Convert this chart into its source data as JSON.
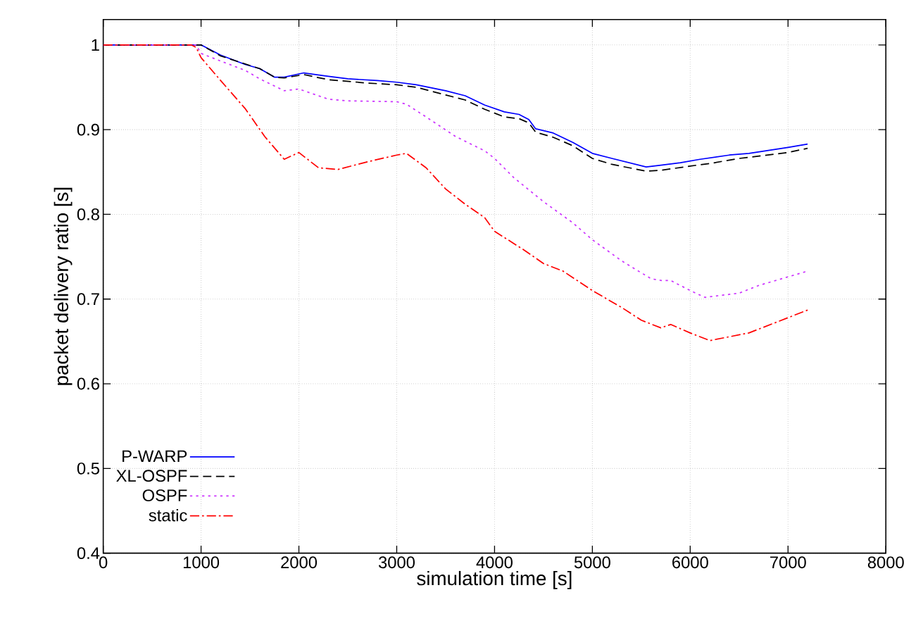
{
  "chart_data": {
    "type": "line",
    "xlabel": "simulation time [s]",
    "ylabel": "packet delivery ratio [s]",
    "xlim": [
      0,
      8000
    ],
    "ylim": [
      0.4,
      1.03
    ],
    "xticks": [
      0,
      1000,
      2000,
      3000,
      4000,
      5000,
      6000,
      7000,
      8000
    ],
    "yticks": [
      0.4,
      0.5,
      0.6,
      0.7,
      0.8,
      0.9,
      1
    ],
    "grid": true,
    "legend": "bottom left",
    "marker": "none",
    "series": [
      {
        "name": "P-WARP",
        "color": "#0000ff",
        "line_style": "solid",
        "x": [
          0,
          950,
          1000,
          1200,
          1450,
          1600,
          1750,
          1850,
          2050,
          2300,
          2500,
          2800,
          3000,
          3200,
          3500,
          3700,
          3900,
          4100,
          4250,
          4350,
          4420,
          4600,
          4800,
          5000,
          5200,
          5550,
          5700,
          5900,
          6100,
          6400,
          6600,
          7000,
          7200
        ],
        "values": [
          1.0,
          1.0,
          1.0,
          0.988,
          0.977,
          0.972,
          0.962,
          0.962,
          0.967,
          0.963,
          0.96,
          0.958,
          0.956,
          0.953,
          0.946,
          0.94,
          0.929,
          0.921,
          0.918,
          0.912,
          0.901,
          0.896,
          0.885,
          0.872,
          0.866,
          0.856,
          0.858,
          0.861,
          0.865,
          0.87,
          0.872,
          0.879,
          0.883
        ]
      },
      {
        "name": "XL-OSPF",
        "color": "#000000",
        "line_style": "dashed",
        "x": [
          0,
          1000,
          1200,
          1600,
          1750,
          1850,
          2050,
          2300,
          2700,
          3000,
          3200,
          3500,
          3700,
          3900,
          4100,
          4250,
          4350,
          4420,
          4600,
          4800,
          5000,
          5200,
          5550,
          5700,
          6000,
          6200,
          6500,
          7000,
          7200
        ],
        "values": [
          1.0,
          1.0,
          0.987,
          0.972,
          0.962,
          0.961,
          0.965,
          0.959,
          0.955,
          0.953,
          0.95,
          0.941,
          0.935,
          0.924,
          0.915,
          0.913,
          0.908,
          0.897,
          0.891,
          0.881,
          0.866,
          0.859,
          0.851,
          0.852,
          0.857,
          0.86,
          0.866,
          0.873,
          0.878
        ]
      },
      {
        "name": "OSPF",
        "color": "#cc33ff",
        "line_style": "dotted",
        "x": [
          0,
          950,
          1000,
          1200,
          1450,
          1600,
          1850,
          2000,
          2300,
          2500,
          3000,
          3100,
          3300,
          3600,
          3900,
          4000,
          4200,
          4500,
          4800,
          5000,
          5300,
          5600,
          5700,
          5800,
          6000,
          6150,
          6500,
          6700,
          7200
        ],
        "values": [
          1.0,
          1.0,
          0.99,
          0.981,
          0.97,
          0.96,
          0.946,
          0.948,
          0.936,
          0.934,
          0.933,
          0.93,
          0.915,
          0.892,
          0.875,
          0.866,
          0.843,
          0.815,
          0.79,
          0.77,
          0.745,
          0.724,
          0.722,
          0.722,
          0.71,
          0.702,
          0.707,
          0.716,
          0.733
        ]
      },
      {
        "name": "static",
        "color": "#ff0000",
        "line_style": "dashdot",
        "x": [
          0,
          900,
          950,
          1000,
          1200,
          1450,
          1650,
          1850,
          2000,
          2200,
          2400,
          2700,
          3000,
          3100,
          3300,
          3500,
          3700,
          3900,
          4000,
          4300,
          4500,
          4700,
          5000,
          5300,
          5500,
          5700,
          5800,
          6000,
          6200,
          6600,
          7000,
          7200
        ],
        "values": [
          1.0,
          1.0,
          0.997,
          0.985,
          0.958,
          0.925,
          0.892,
          0.865,
          0.873,
          0.855,
          0.853,
          0.862,
          0.87,
          0.872,
          0.855,
          0.83,
          0.812,
          0.796,
          0.78,
          0.758,
          0.742,
          0.733,
          0.71,
          0.69,
          0.675,
          0.666,
          0.67,
          0.66,
          0.651,
          0.66,
          0.678,
          0.687
        ]
      }
    ]
  }
}
